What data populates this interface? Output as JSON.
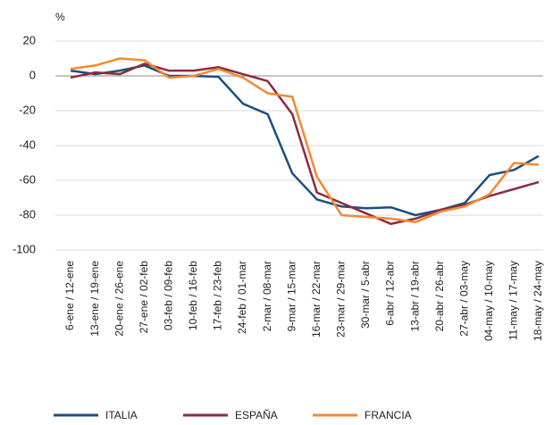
{
  "chart_data": {
    "type": "line",
    "y_unit": "%",
    "categories": [
      "6-ene / 12-ene",
      "13-ene / 19-ene",
      "20-ene / 26-ene",
      "27-ene / 02-feb",
      "03-feb / 09-feb",
      "10-feb / 16-feb",
      "17-feb / 23-feb",
      "24-feb / 01-mar",
      "2-mar / 08-mar",
      "9-mar / 15-mar",
      "16-mar / 22-mar",
      "23-mar / 29-mar",
      "30-mar / 5-abr",
      "6-abr / 12-abr",
      "13-abr / 19-abr",
      "20-abr / 26-abr",
      "27-abr / 03-may",
      "04-may / 10-may",
      "11-may / 17-may",
      "18-may / 24-may"
    ],
    "series": [
      {
        "name": "ITALIA",
        "color": "#1b4f7f",
        "values": [
          3,
          1,
          3,
          6,
          0,
          0,
          -0.5,
          -16,
          -22,
          -56,
          -71,
          -75,
          -76,
          -75.5,
          -80,
          -77,
          -73,
          -57,
          -54,
          -46
        ]
      },
      {
        "name": "ESPAÑA",
        "color": "#8c2b40",
        "values": [
          -1,
          2,
          1,
          7,
          3,
          3,
          5,
          1,
          -3,
          -22,
          -67,
          -73,
          -79,
          -85,
          -82,
          -77,
          -74,
          -69,
          -65,
          -61
        ]
      },
      {
        "name": "FRANCIA",
        "color": "#f28a30",
        "values": [
          4,
          6,
          10,
          9,
          -1,
          0,
          4,
          -1,
          -10,
          -12,
          -58,
          -80,
          -81,
          -82,
          -84,
          -78,
          -75,
          -68,
          -50,
          -51
        ]
      }
    ],
    "ylim": [
      -100,
      20
    ],
    "yticks": [
      -100,
      -80,
      -60,
      -40,
      -20,
      0,
      20
    ],
    "grid": true
  }
}
